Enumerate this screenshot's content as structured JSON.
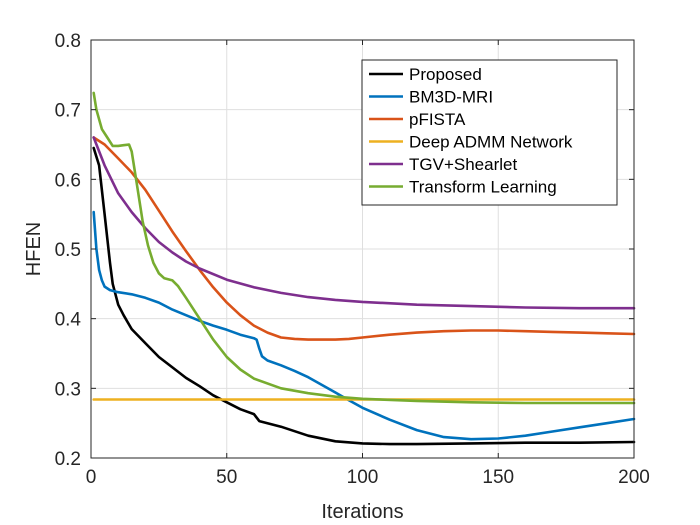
{
  "chart_data": {
    "type": "line",
    "title": "",
    "xlabel": "Iterations",
    "ylabel": "HFEN",
    "xlim": [
      0,
      200
    ],
    "ylim": [
      0.2,
      0.8
    ],
    "xticks": [
      0,
      50,
      100,
      150,
      200
    ],
    "yticks": [
      0.2,
      0.3,
      0.4,
      0.5,
      0.6,
      0.7,
      0.8
    ],
    "xtick_labels": [
      "0",
      "50",
      "100",
      "150",
      "200"
    ],
    "ytick_labels": [
      "0.2",
      "0.3",
      "0.4",
      "0.5",
      "0.6",
      "0.7",
      "0.8"
    ],
    "grid": true,
    "legend_position": "top-right",
    "series": [
      {
        "name": "Proposed",
        "color": "#000000",
        "x": [
          1,
          3,
          5,
          7,
          8,
          10,
          12,
          15,
          20,
          25,
          30,
          35,
          40,
          45,
          50,
          55,
          60,
          62,
          70,
          80,
          90,
          100,
          110,
          120,
          140,
          160,
          180,
          200
        ],
        "y": [
          0.645,
          0.62,
          0.55,
          0.48,
          0.45,
          0.42,
          0.405,
          0.385,
          0.365,
          0.345,
          0.33,
          0.315,
          0.303,
          0.29,
          0.28,
          0.27,
          0.263,
          0.253,
          0.245,
          0.232,
          0.224,
          0.221,
          0.22,
          0.22,
          0.221,
          0.222,
          0.222,
          0.223
        ]
      },
      {
        "name": "BM3D-MRI",
        "color": "#0072BD",
        "x": [
          1,
          2,
          3,
          4,
          5,
          7,
          10,
          15,
          20,
          25,
          30,
          35,
          40,
          45,
          50,
          55,
          60,
          61,
          62,
          63,
          65,
          70,
          75,
          80,
          85,
          90,
          95,
          100,
          110,
          120,
          130,
          140,
          150,
          160,
          170,
          180,
          190,
          200
        ],
        "y": [
          0.553,
          0.5,
          0.47,
          0.455,
          0.446,
          0.441,
          0.438,
          0.435,
          0.43,
          0.423,
          0.413,
          0.405,
          0.397,
          0.39,
          0.384,
          0.377,
          0.372,
          0.37,
          0.357,
          0.346,
          0.34,
          0.333,
          0.325,
          0.316,
          0.305,
          0.294,
          0.283,
          0.272,
          0.255,
          0.24,
          0.23,
          0.227,
          0.228,
          0.232,
          0.238,
          0.244,
          0.25,
          0.256
        ]
      },
      {
        "name": "pFISTA",
        "color": "#D95319",
        "x": [
          1,
          5,
          10,
          15,
          20,
          25,
          30,
          35,
          40,
          45,
          50,
          55,
          60,
          65,
          70,
          75,
          80,
          85,
          90,
          95,
          100,
          110,
          120,
          130,
          140,
          150,
          160,
          170,
          180,
          190,
          200
        ],
        "y": [
          0.66,
          0.65,
          0.63,
          0.61,
          0.585,
          0.555,
          0.525,
          0.497,
          0.47,
          0.445,
          0.423,
          0.405,
          0.39,
          0.38,
          0.373,
          0.371,
          0.37,
          0.37,
          0.37,
          0.371,
          0.373,
          0.377,
          0.38,
          0.382,
          0.383,
          0.383,
          0.382,
          0.381,
          0.38,
          0.379,
          0.378
        ]
      },
      {
        "name": "Deep ADMM Network",
        "color": "#EDB120",
        "x": [
          1,
          200
        ],
        "y": [
          0.284,
          0.284
        ]
      },
      {
        "name": "TGV+Shearlet",
        "color": "#7E2F8E",
        "x": [
          1,
          5,
          10,
          15,
          20,
          25,
          30,
          35,
          40,
          50,
          60,
          70,
          80,
          90,
          100,
          120,
          140,
          160,
          180,
          200
        ],
        "y": [
          0.66,
          0.62,
          0.58,
          0.553,
          0.53,
          0.51,
          0.495,
          0.482,
          0.472,
          0.456,
          0.445,
          0.437,
          0.431,
          0.427,
          0.424,
          0.42,
          0.418,
          0.416,
          0.415,
          0.415
        ]
      },
      {
        "name": "Transform Learning",
        "color": "#77AC30",
        "x": [
          1,
          2,
          4,
          6,
          8,
          10,
          12,
          14,
          15,
          17,
          19,
          21,
          23,
          25,
          27,
          30,
          32,
          35,
          40,
          45,
          50,
          55,
          60,
          70,
          80,
          90,
          100,
          120,
          140,
          160,
          180,
          200
        ],
        "y": [
          0.724,
          0.7,
          0.672,
          0.66,
          0.648,
          0.648,
          0.649,
          0.65,
          0.64,
          0.59,
          0.54,
          0.505,
          0.48,
          0.465,
          0.458,
          0.455,
          0.447,
          0.43,
          0.4,
          0.37,
          0.345,
          0.327,
          0.314,
          0.3,
          0.293,
          0.288,
          0.285,
          0.282,
          0.28,
          0.279,
          0.279,
          0.279
        ]
      }
    ]
  }
}
